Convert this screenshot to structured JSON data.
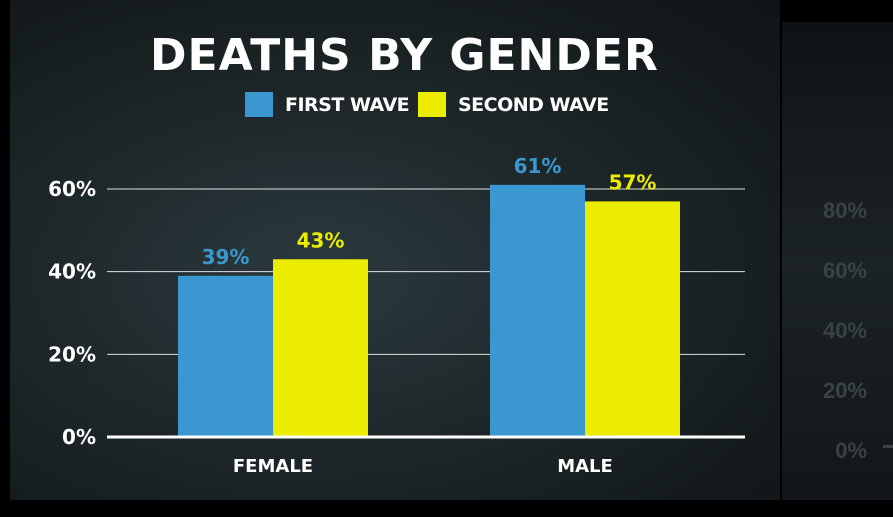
{
  "chart_data": {
    "type": "bar",
    "title": "DEATHS BY GENDER",
    "categories": [
      "FEMALE",
      "MALE"
    ],
    "series": [
      {
        "name": "FIRST WAVE",
        "values": [
          39,
          61
        ],
        "labels": [
          "39%",
          "61%"
        ],
        "color": "#3a97cf"
      },
      {
        "name": "SECOND WAVE",
        "values": [
          43,
          57
        ],
        "labels": [
          "43%",
          "57%"
        ],
        "color": "#ecec00"
      }
    ],
    "yticks": [
      "0%",
      "20%",
      "40%",
      "60%"
    ],
    "ylim": [
      0,
      60
    ],
    "grid": true,
    "legend": "top"
  },
  "background_chart": {
    "yticks": [
      "80%",
      "60%",
      "40%",
      "20%",
      "0%"
    ]
  },
  "colors": {
    "background": "#1d2729",
    "gridline": "#ffffff",
    "text": "#ffffff"
  }
}
